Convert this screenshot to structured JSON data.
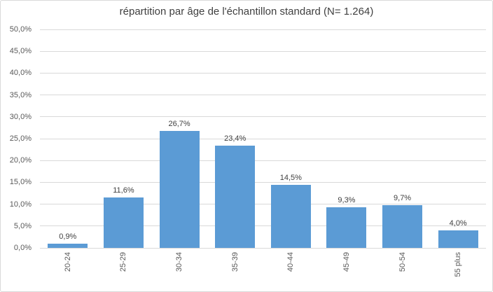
{
  "chart_data": {
    "type": "bar",
    "title": "répartition par âge de l'échantillon standard (N= 1.264)",
    "categories": [
      "20-24",
      "25-29",
      "30-34",
      "35-39",
      "40-44",
      "45-49",
      "50-54",
      "55 plus"
    ],
    "values": [
      0.9,
      11.6,
      26.7,
      23.4,
      14.5,
      9.3,
      9.7,
      4.0
    ],
    "data_labels": [
      "0,9%",
      "11,6%",
      "26,7%",
      "23,4%",
      "14,5%",
      "9,3%",
      "9,7%",
      "4,0%"
    ],
    "xlabel": "",
    "ylabel": "",
    "ylim": [
      0,
      50
    ],
    "ytick_step": 5,
    "ytick_labels": [
      "0,0%",
      "5,0%",
      "10,0%",
      "15,0%",
      "20,0%",
      "25,0%",
      "30,0%",
      "35,0%",
      "40,0%",
      "45,0%",
      "50,0%"
    ],
    "grid": true,
    "legend": "none",
    "bar_color": "#5b9bd5",
    "gridline_color": "#d9d9d9",
    "axis_text_color": "#595959",
    "title_color": "#404040"
  }
}
